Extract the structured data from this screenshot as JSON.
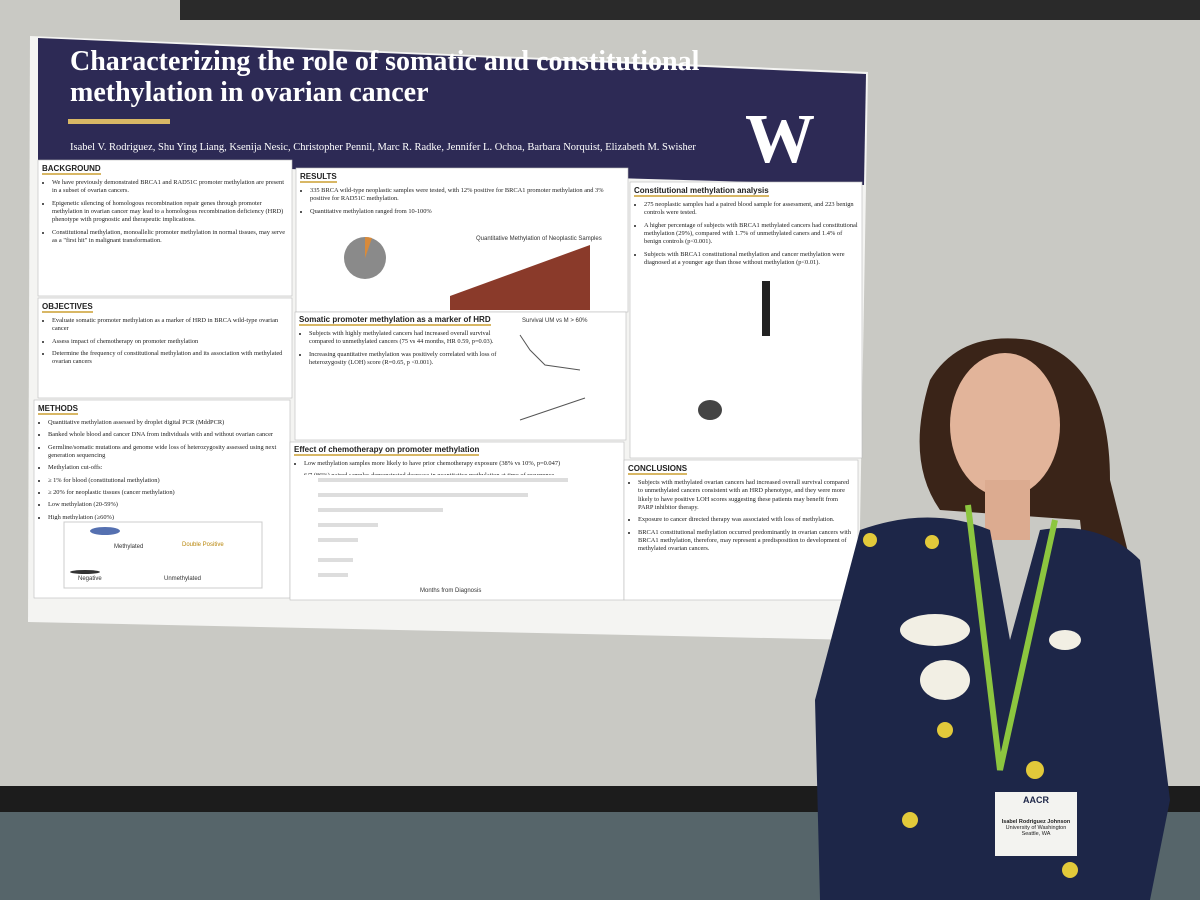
{
  "poster": {
    "title": [
      "Characterizing the role of somatic and constitutional",
      "methylation in ovarian cancer"
    ],
    "authors": "Isabel V. Rodriguez, Shu Ying Liang, Ksenija Nesic, Christopher Pennil, Marc R. Radke, Jennifer L. Ochoa, Barbara Norquist, Elizabeth M. Swisher",
    "logo": "W",
    "background": {
      "heading": "BACKGROUND",
      "bullets": [
        "We have previously demonstrated BRCA1 and RAD51C promoter methylation are present in a subset of ovarian cancers.",
        "Epigenetic silencing of homologous recombination repair genes through promoter methylation in ovarian cancer may lead to a homologous recombination deficiency (HRD) phenotype with prognostic and therapeutic implications.",
        "Constitutional methylation, monoallelic promoter methylation in normal tissues, may serve as a \"first hit\" in malignant transformation."
      ]
    },
    "objectives": {
      "heading": "OBJECTIVES",
      "bullets": [
        "Evaluate somatic promoter methylation as a marker of HRD in BRCA wild-type ovarian cancer",
        "Assess impact of chemotherapy on promoter methylation",
        "Determine the frequency of constitutional methylation and its association with methylated ovarian cancers"
      ]
    },
    "methods": {
      "heading": "METHODS",
      "bullets": [
        "Quantitative methylation assessed by droplet digital PCR (MddPCR)",
        "Banked whole blood and cancer DNA from individuals with and without ovarian cancer",
        "Germline/somatic mutations and genome wide loss of heterozygosity assessed using next generation sequencing",
        "Methylation cut-offs:",
        "≥ 1% for blood (constitutional methylation)",
        "≥ 20% for neoplastic tissues (cancer methylation)",
        "Low methylation (20-59%)",
        "High methylation (≥60%)"
      ],
      "plot_labels": [
        "Methylated",
        "Double Positive",
        "Negative",
        "Unmethylated"
      ]
    },
    "results": {
      "heading": "RESULTS",
      "bullets": [
        "335 BRCA wild-type neoplastic samples were tested, with 12% positive for BRCA1 promoter methylation and 3% positive for RAD51C methylation.",
        "Quantitative methylation ranged from 10-100%"
      ],
      "chart_title": "Quantitative Methylation of Neoplastic Samples"
    },
    "somatic": {
      "heading": "Somatic promoter methylation as a marker of HRD",
      "bullets": [
        "Subjects with highly methylated cancers had increased overall survival compared to unmethylated cancers (75 vs 44 months, HR 0.59, p=0.03).",
        "Increasing quantitative methylation was positively correlated with loss of heterozygosity (LOH) score (R=0.65, p <0.001)."
      ],
      "chart_title": "Survival UM vs M > 60%"
    },
    "chemo": {
      "heading": "Effect of chemotherapy on promoter methylation",
      "bullets": [
        "Low methylation samples more likely to have prior chemotherapy exposure (38% vs 10%, p=0.047)",
        "6/7 (86%) paired samples demonstrated decrease in quantitative methylation at time of recurrence"
      ],
      "axis_label": "Months from Diagnosis"
    },
    "constitutional": {
      "heading": "Constitutional methylation analysis",
      "bullets": [
        "275 neoplastic samples had a paired blood sample for assessment, and 223 benign controls were tested.",
        "A higher percentage of subjects with BRCA1 methylated cancers had constitutional methylation (29%), compared with 1.7% of unmethylated caners and 1.4% of benign controls (p<0.001).",
        "Subjects with BRCA1 constitutional methylation and cancer methylation were diagnosed at a younger age than those without methylation (p<0.01)."
      ]
    },
    "conclusions": {
      "heading": "CONCLUSIONS",
      "bullets": [
        "Subjects with methylated ovarian cancers had increased overall survival compared to unmethylated cancers consistent with an HRD phenotype, and they were more likely to have positive LOH scores suggesting these patients may benefit from PARP inhibitor therapy.",
        "Exposure to cancer directed therapy was associated with loss of methylation.",
        "BRCA1 constitutional methylation occurred predominantly in ovarian cancers with BRCA1 methylation, therefore, may represent a predisposition to development of methylated ovarian cancers."
      ]
    }
  },
  "badge": {
    "org": "AACR",
    "name": "Isabel Rodriguez Johnson",
    "affiliation": "University of Washington",
    "location": "Seattle, WA"
  }
}
